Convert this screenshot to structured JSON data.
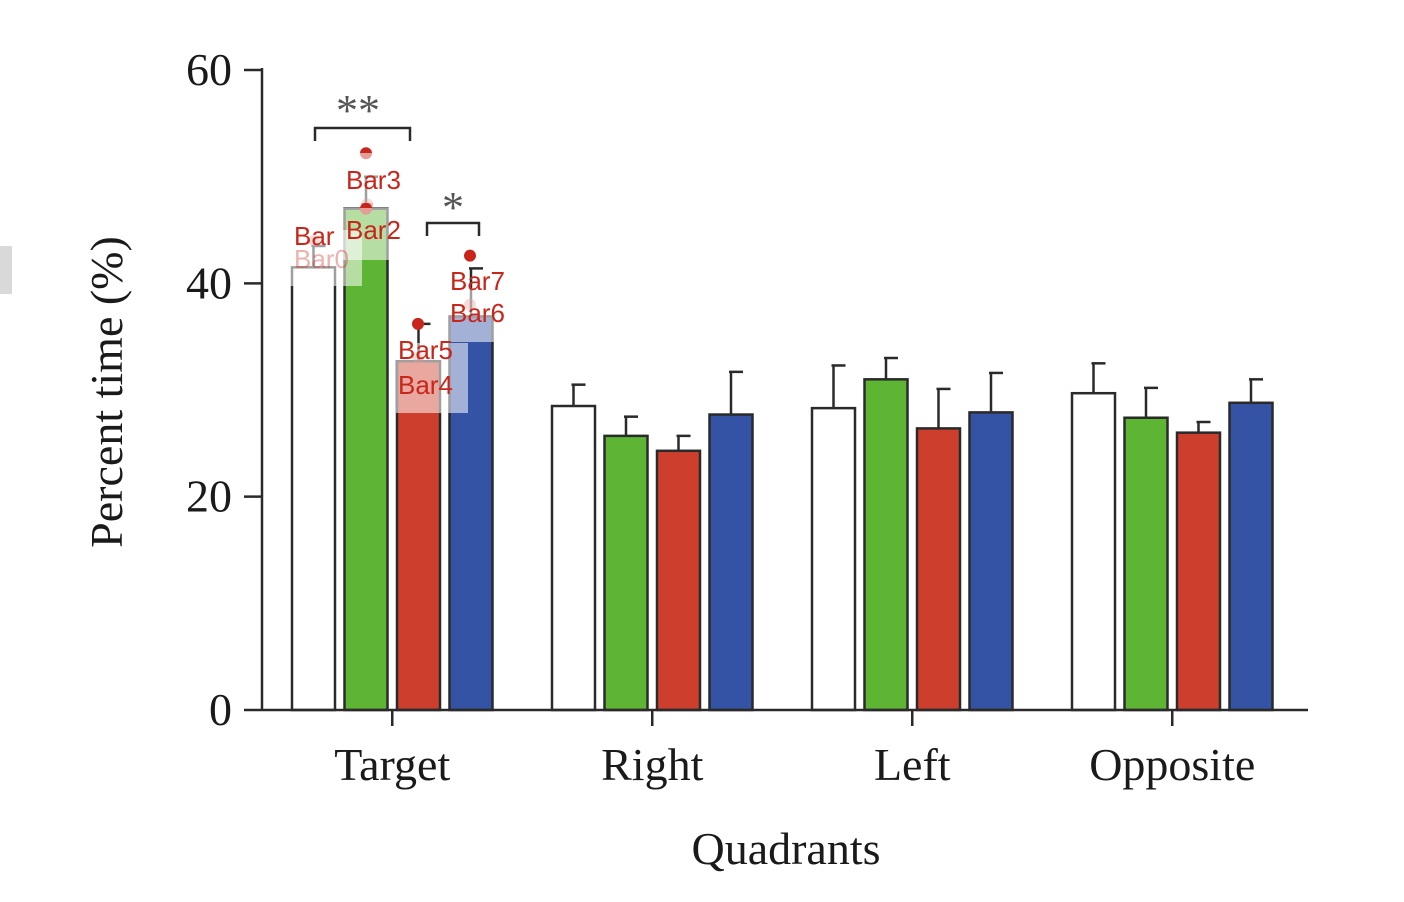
{
  "chart_data": {
    "type": "bar",
    "xlabel": "Quadrants",
    "ylabel": "Percent time (%)",
    "ylim": [
      0,
      60
    ],
    "yticks": [
      "0",
      "20",
      "40",
      "60"
    ],
    "categories": [
      "Target",
      "Right",
      "Left",
      "Opposite"
    ],
    "series": [
      {
        "fill": "#ffffff",
        "values": [
          41.5,
          28.5,
          28.3,
          29.7
        ],
        "errors": [
          2.0,
          2.0,
          4.0,
          2.8
        ]
      },
      {
        "fill": "#5db533",
        "values": [
          47.0,
          25.7,
          31.0,
          27.4
        ],
        "errors": [
          3.0,
          1.8,
          2.0,
          2.8
        ]
      },
      {
        "fill": "#cd3f2c",
        "values": [
          32.7,
          24.3,
          26.4,
          26.0
        ],
        "errors": [
          3.5,
          1.4,
          3.7,
          1.0
        ]
      },
      {
        "fill": "#3553a4",
        "values": [
          36.9,
          27.7,
          27.9,
          28.8
        ],
        "errors": [
          4.5,
          4.0,
          3.7,
          2.2
        ]
      }
    ],
    "significance": [
      {
        "label": "**",
        "between_series": [
          0,
          1
        ],
        "category": "Target"
      },
      {
        "label": "*",
        "between_series": [
          2,
          3
        ],
        "category": "Target"
      }
    ]
  },
  "annotations": {
    "color": "#c8261b",
    "markers": [
      {
        "label": "Bar0",
        "value": 44.0
      },
      {
        "label": "Bar1",
        "value": 47.0
      },
      {
        "label": "Bar2",
        "value": 47.4
      },
      {
        "label": "Bar3",
        "value": 52.2
      },
      {
        "label": "Bar4",
        "value": 33.0
      },
      {
        "label": "Bar5",
        "value": 36.2
      },
      {
        "label": "Bar6",
        "value": 38.0
      },
      {
        "label": "Bar7",
        "value": 42.6
      }
    ],
    "displayed_labels": [
      "Bar",
      "Bar2",
      "Bar3",
      "Bar7",
      "Bar6",
      "Bar5",
      "Bar4"
    ]
  }
}
